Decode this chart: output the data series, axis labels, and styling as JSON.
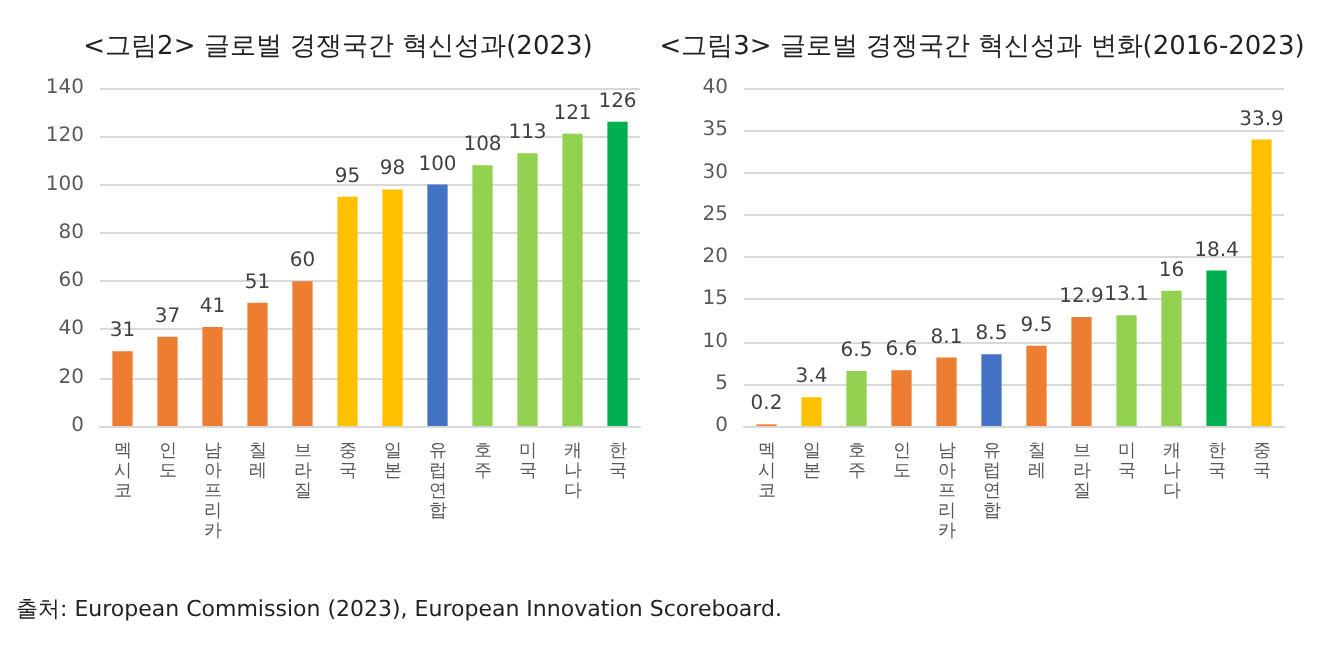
{
  "chart_data": [
    {
      "type": "bar",
      "title": "<그림2> 글로벌 경쟁국간 혁신성과(2023)",
      "categories": [
        "멕시코",
        "인도",
        "남아프리카",
        "칠레",
        "브라질",
        "중국",
        "일본",
        "유럽연합",
        "호주",
        "미국",
        "캐나다",
        "한국"
      ],
      "values": [
        31,
        37,
        41,
        51,
        60,
        95,
        98,
        100,
        108,
        113,
        121,
        126
      ],
      "colors": [
        "#ed7d31",
        "#ed7d31",
        "#ed7d31",
        "#ed7d31",
        "#ed7d31",
        "#ffc000",
        "#ffc000",
        "#4472c4",
        "#92d050",
        "#92d050",
        "#92d050",
        "#00b050"
      ],
      "ylim": [
        0,
        140
      ],
      "yticks": [
        0,
        20,
        40,
        60,
        80,
        100,
        120,
        140
      ],
      "grid": "y",
      "data_labels": true
    },
    {
      "type": "bar",
      "title": "<그림3> 글로벌 경쟁국간 혁신성과 변화(2016-2023)",
      "categories": [
        "멕시코",
        "일본",
        "호주",
        "인도",
        "남아프리카",
        "유럽연합",
        "칠레",
        "브라질",
        "미국",
        "캐나다",
        "한국",
        "중국"
      ],
      "values": [
        0.2,
        3.4,
        6.5,
        6.6,
        8.1,
        8.5,
        9.5,
        12.9,
        13.1,
        16,
        18.4,
        33.9
      ],
      "colors": [
        "#ed7d31",
        "#ffc000",
        "#92d050",
        "#ed7d31",
        "#ed7d31",
        "#4472c4",
        "#ed7d31",
        "#ed7d31",
        "#92d050",
        "#92d050",
        "#00b050",
        "#ffc000"
      ],
      "ylim": [
        0,
        40
      ],
      "yticks": [
        0,
        5,
        10,
        15,
        20,
        25,
        30,
        35,
        40
      ],
      "grid": "y",
      "data_labels": true,
      "annotations": [
        "출처: European Commission (2023), European Innovation Scoreboard."
      ]
    }
  ]
}
